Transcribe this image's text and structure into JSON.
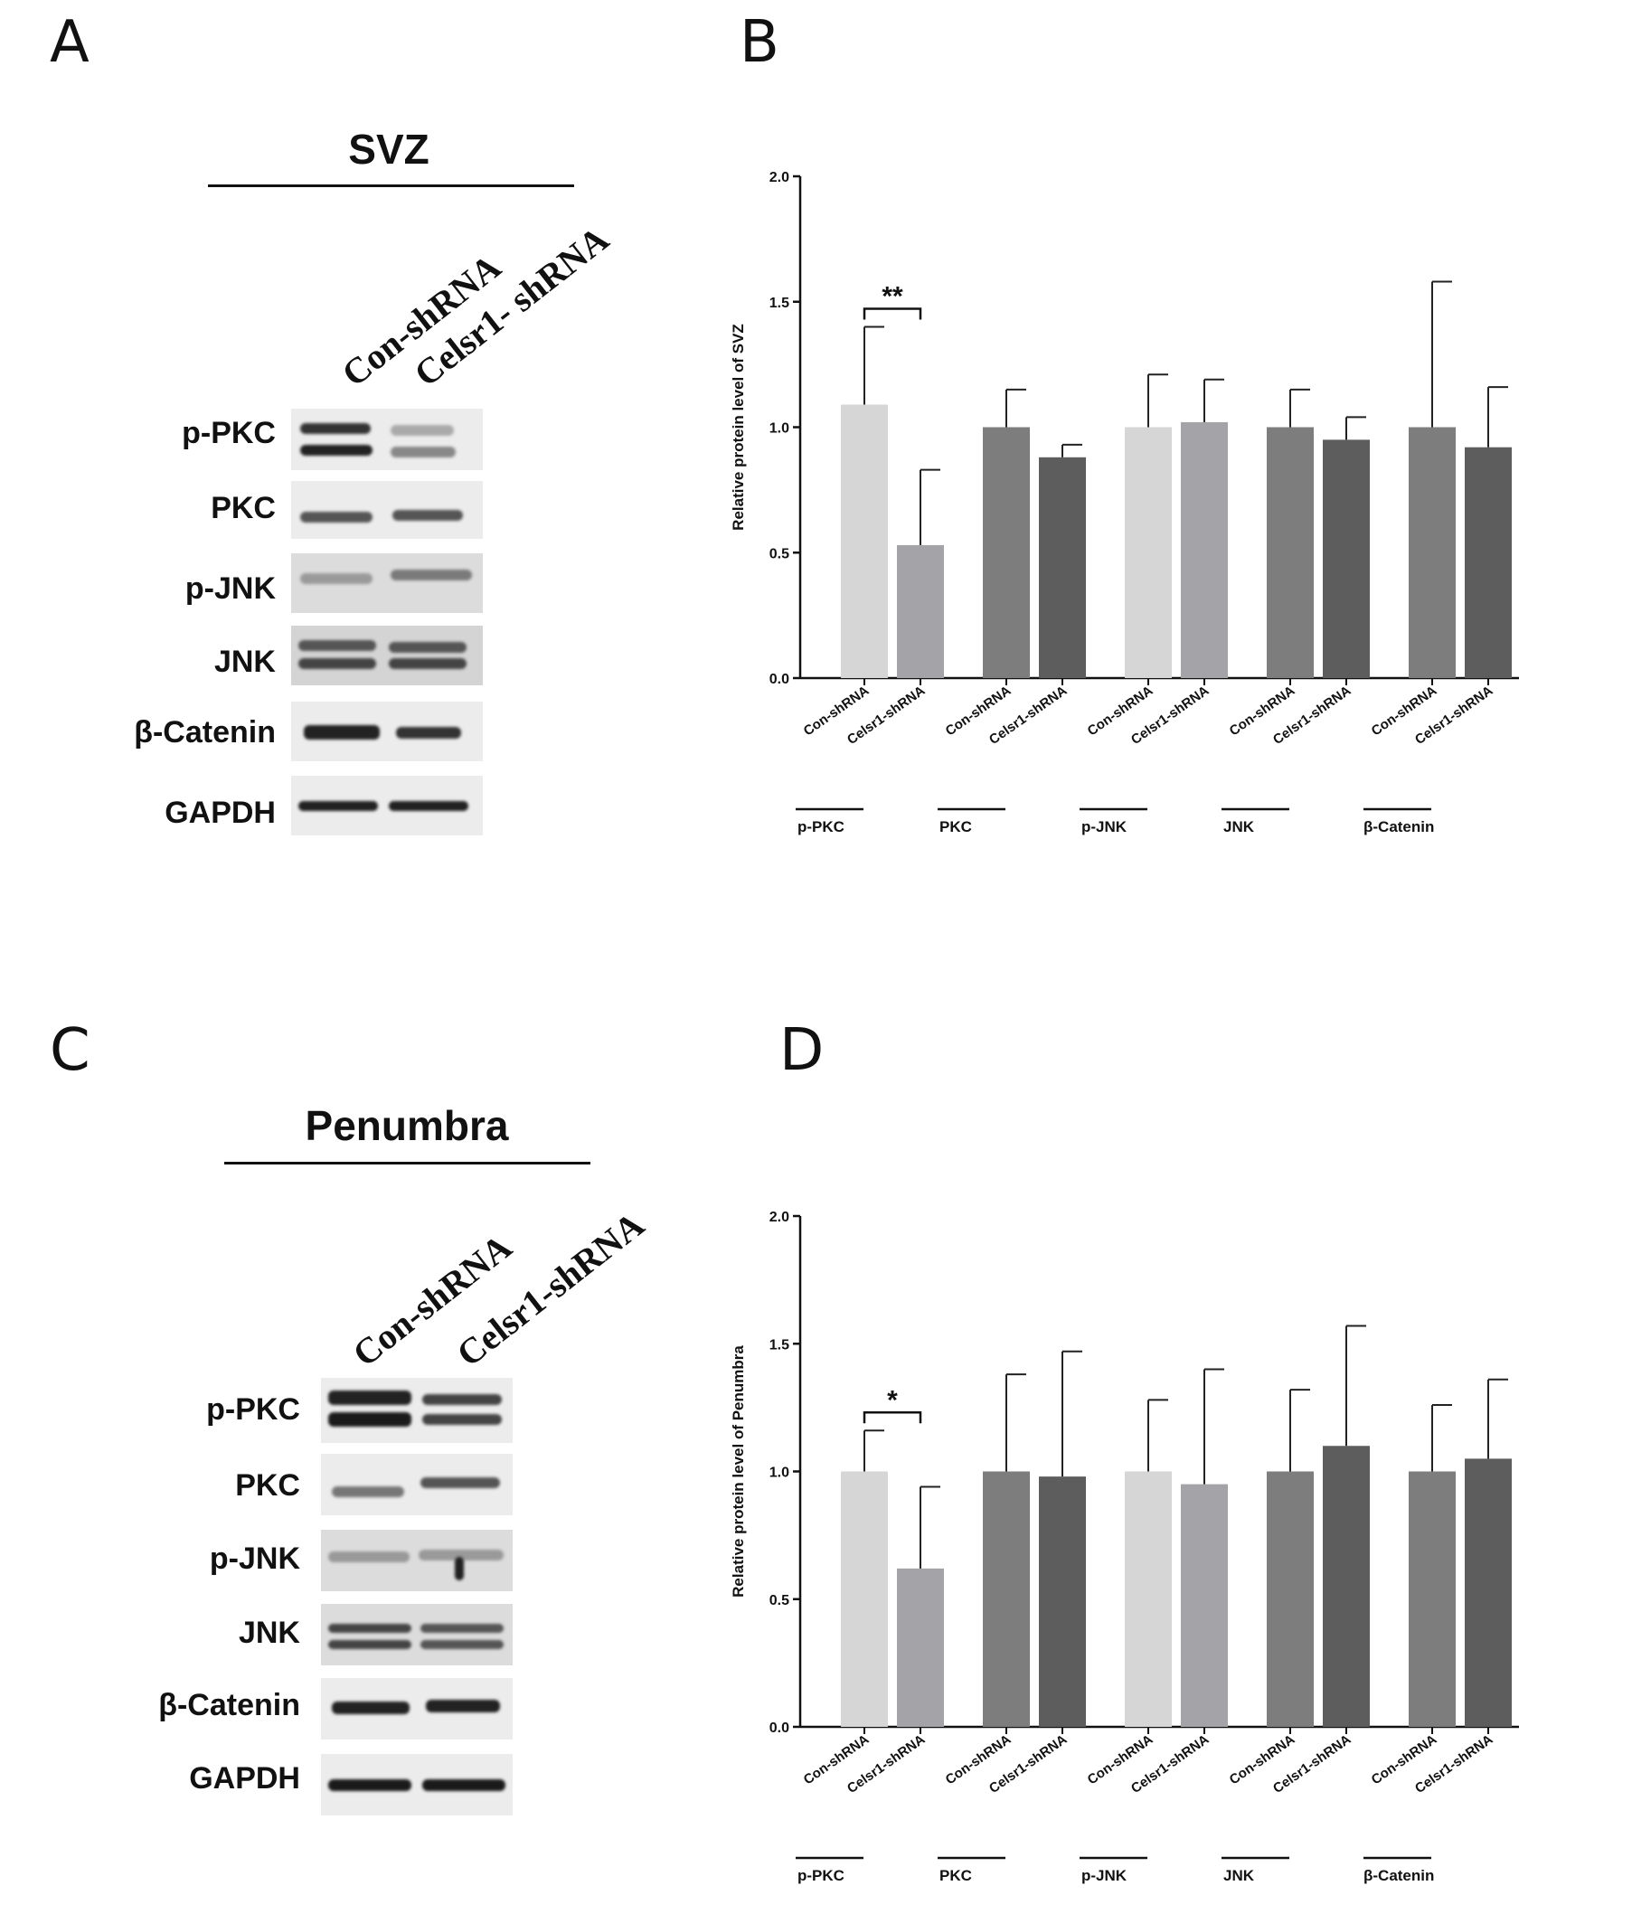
{
  "panels": {
    "a_label": "A",
    "b_label": "B",
    "c_label": "C",
    "d_label": "D"
  },
  "blot_a": {
    "region": "SVZ",
    "lanes": [
      "Con-shRNA",
      "Celsr1- shRNA"
    ],
    "rows": [
      "p-PKC",
      "PKC",
      "p-JNK",
      "JNK",
      "β-Catenin",
      "GAPDH"
    ]
  },
  "blot_c": {
    "region": "Penumbra",
    "lanes": [
      "Con-shRNA",
      "Celsr1-shRNA"
    ],
    "rows": [
      "p-PKC",
      "PKC",
      "p-JNK",
      "JNK",
      "β-Catenin",
      "GAPDH"
    ]
  },
  "colors": {
    "light": "#d6d6d6",
    "mid_light": "#a3a3a8",
    "mid": "#7d7d7d",
    "dark": "#5d5d5d"
  },
  "chart_data": [
    {
      "type": "bar",
      "ylabel": "Relative protein level of SVZ",
      "ylim": [
        0,
        2.0
      ],
      "yticks": [
        "0.0",
        "0.5",
        "1.0",
        "1.5",
        "2.0"
      ],
      "groups": [
        "p-PKC",
        "PKC",
        "p-JNK",
        "JNK",
        "β-Catenin"
      ],
      "bar_labels": [
        "Con-shRNA",
        "Celsr1-shRNA"
      ],
      "series": [
        {
          "name": "Con-shRNA",
          "values": [
            1.09,
            1.0,
            1.0,
            1.0,
            1.0
          ],
          "errors": [
            0.31,
            0.15,
            0.21,
            0.15,
            0.58
          ]
        },
        {
          "name": "Celsr1-shRNA",
          "values": [
            0.53,
            0.88,
            1.02,
            0.95,
            0.92
          ],
          "errors": [
            0.3,
            0.05,
            0.17,
            0.09,
            0.24
          ]
        }
      ],
      "significance": [
        {
          "group": "p-PKC",
          "label": "**"
        }
      ]
    },
    {
      "type": "bar",
      "ylabel": "Relative protein level of Penumbra",
      "ylim": [
        0,
        2.0
      ],
      "yticks": [
        "0.0",
        "0.5",
        "1.0",
        "1.5",
        "2.0"
      ],
      "groups": [
        "p-PKC",
        "PKC",
        "p-JNK",
        "JNK",
        "β-Catenin"
      ],
      "bar_labels": [
        "Con-shRNA",
        "Celsr1-shRNA"
      ],
      "series": [
        {
          "name": "Con-shRNA",
          "values": [
            1.0,
            1.0,
            1.0,
            1.0,
            1.0
          ],
          "errors": [
            0.16,
            0.38,
            0.28,
            0.32,
            0.26
          ]
        },
        {
          "name": "Celsr1-shRNA",
          "values": [
            0.62,
            0.98,
            0.95,
            1.1,
            1.05
          ],
          "errors": [
            0.32,
            0.49,
            0.45,
            0.47,
            0.31
          ]
        }
      ],
      "significance": [
        {
          "group": "p-PKC",
          "label": "*"
        }
      ]
    }
  ]
}
